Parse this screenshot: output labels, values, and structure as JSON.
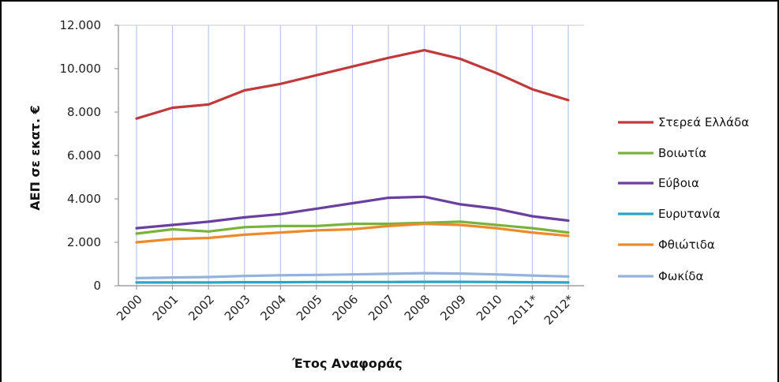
{
  "chart_data": {
    "type": "line",
    "title": "",
    "xlabel": "Έτος Αναφοράς",
    "ylabel": "ΑΕΠ σε εκατ. €",
    "categories": [
      "2000",
      "2001",
      "2002",
      "2003",
      "2004",
      "2005",
      "2006",
      "2007",
      "2008",
      "2009",
      "2010",
      "2011*",
      "2012*"
    ],
    "ylim": [
      0,
      12000
    ],
    "yticks": [
      0,
      2000,
      4000,
      6000,
      8000,
      10000,
      12000
    ],
    "ytick_labels": [
      "0",
      "2.000",
      "4.000",
      "6.000",
      "8.000",
      "10.000",
      "12.000"
    ],
    "grid": "vertical lines at categories",
    "legend_position": "right",
    "series": [
      {
        "name": "Στερεά Ελλάδα",
        "color": "#c0393b",
        "values": [
          7700,
          8200,
          8350,
          9000,
          9300,
          9700,
          10100,
          10500,
          10850,
          10450,
          9800,
          9050,
          8550
        ]
      },
      {
        "name": "Βοιωτία",
        "color": "#7ab33c",
        "values": [
          2400,
          2600,
          2500,
          2700,
          2750,
          2750,
          2850,
          2850,
          2900,
          2950,
          2800,
          2650,
          2450
        ]
      },
      {
        "name": "Εύβοια",
        "color": "#6a3fa0",
        "values": [
          2650,
          2800,
          2950,
          3150,
          3300,
          3550,
          3800,
          4050,
          4100,
          3750,
          3550,
          3200,
          3000
        ]
      },
      {
        "name": "Ευρυτανία",
        "color": "#2aa5c7",
        "values": [
          150,
          150,
          150,
          160,
          160,
          170,
          170,
          170,
          180,
          180,
          170,
          160,
          150
        ]
      },
      {
        "name": "Φθιώτιδα",
        "color": "#ee8a2e",
        "values": [
          2000,
          2150,
          2200,
          2350,
          2450,
          2550,
          2600,
          2750,
          2850,
          2800,
          2650,
          2450,
          2300
        ]
      },
      {
        "name": "Φωκίδα",
        "color": "#94b3dc",
        "values": [
          350,
          380,
          400,
          450,
          480,
          500,
          520,
          550,
          580,
          560,
          520,
          470,
          420
        ]
      }
    ]
  }
}
